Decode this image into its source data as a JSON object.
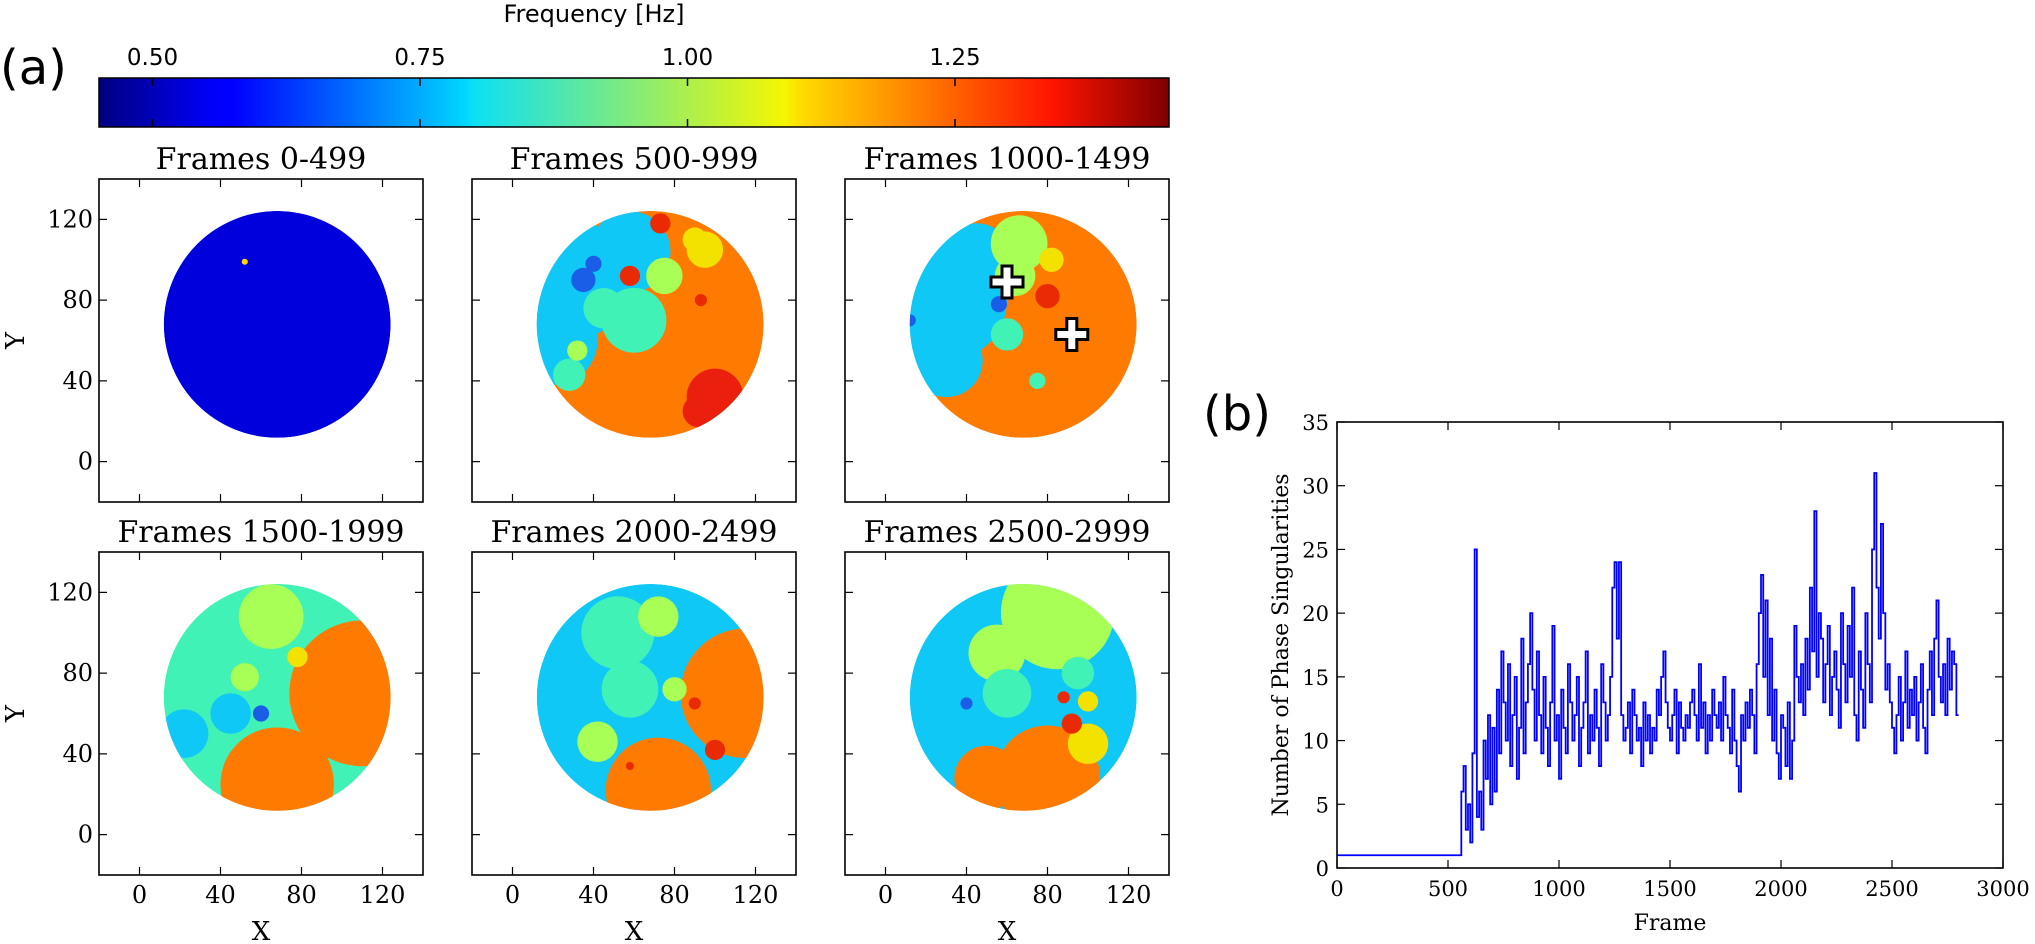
{
  "panel_labels": {
    "a": "(a)",
    "b": "(b)"
  },
  "colorbar": {
    "label": "Frequency [Hz]",
    "ticks": [
      "0.50",
      "0.75",
      "1.00",
      "1.25"
    ],
    "tick_values": [
      0.5,
      0.75,
      1.0,
      1.25
    ],
    "range": [
      0.45,
      1.45
    ],
    "colormap": "jet"
  },
  "map_axes": {
    "xlabel": "X",
    "ylabel": "Y",
    "x_ticks": [
      "0",
      "40",
      "80",
      "120"
    ],
    "y_ticks": [
      "0",
      "40",
      "80",
      "120"
    ],
    "xlim": [
      -20,
      140
    ],
    "ylim": [
      -20,
      140
    ]
  },
  "markers": [
    {
      "panel": 2,
      "x": 60,
      "y": 89,
      "label": "phase-singularity-marker"
    },
    {
      "panel": 2,
      "x": 92,
      "y": 63,
      "label": "phase-singularity-marker"
    }
  ],
  "chart_data": [
    {
      "type": "heatmap",
      "title": "Frames 0-499",
      "xlabel": "X",
      "ylabel": "Y",
      "xlim": [
        -20,
        140
      ],
      "ylim": [
        -20,
        140
      ],
      "circle": {
        "cx": 68,
        "cy": 68,
        "r": 56
      },
      "base_color": "#0000dd",
      "regions": [
        {
          "cx": 52,
          "cy": 99,
          "r": 1.5,
          "color": "#ffd800"
        }
      ]
    },
    {
      "type": "heatmap",
      "title": "Frames 500-999",
      "xlabel": "X",
      "ylabel": "Y",
      "xlim": [
        -20,
        140
      ],
      "ylim": [
        -20,
        140
      ],
      "circle": {
        "cx": 68,
        "cy": 68,
        "r": 56
      },
      "base_color": "#ff7a00",
      "regions": [
        {
          "cx": 28,
          "cy": 90,
          "r": 30,
          "color": "#10c8f6"
        },
        {
          "cx": 20,
          "cy": 60,
          "r": 22,
          "color": "#10c8f6"
        },
        {
          "cx": 58,
          "cy": 104,
          "r": 20,
          "color": "#10c8f6"
        },
        {
          "cx": 60,
          "cy": 70,
          "r": 16,
          "color": "#40f2b6"
        },
        {
          "cx": 45,
          "cy": 76,
          "r": 10,
          "color": "#40f2b6"
        },
        {
          "cx": 28,
          "cy": 43,
          "r": 8,
          "color": "#40f2b6"
        },
        {
          "cx": 75,
          "cy": 92,
          "r": 9,
          "color": "#a8ff55"
        },
        {
          "cx": 95,
          "cy": 105,
          "r": 9,
          "color": "#f3e200"
        },
        {
          "cx": 90,
          "cy": 110,
          "r": 6,
          "color": "#f3e200"
        },
        {
          "cx": 73,
          "cy": 118,
          "r": 5,
          "color": "#ea2a05"
        },
        {
          "cx": 35,
          "cy": 90,
          "r": 6,
          "color": "#1a5ee8"
        },
        {
          "cx": 40,
          "cy": 98,
          "r": 4,
          "color": "#1a5ee8"
        },
        {
          "cx": 58,
          "cy": 92,
          "r": 5,
          "color": "#ea2a05"
        },
        {
          "cx": 100,
          "cy": 32,
          "r": 14,
          "color": "#ea1f0d"
        },
        {
          "cx": 92,
          "cy": 25,
          "r": 8,
          "color": "#ea1f0d"
        },
        {
          "cx": 93,
          "cy": 80,
          "r": 3,
          "color": "#ea2a05"
        },
        {
          "cx": 32,
          "cy": 55,
          "r": 5,
          "color": "#a8ff55"
        }
      ]
    },
    {
      "type": "heatmap",
      "title": "Frames 1000-1499",
      "xlabel": "X",
      "ylabel": "Y",
      "xlim": [
        -20,
        140
      ],
      "ylim": [
        -20,
        140
      ],
      "circle": {
        "cx": 68,
        "cy": 68,
        "r": 56
      },
      "base_color": "#ff7a00",
      "regions": [
        {
          "cx": 30,
          "cy": 80,
          "r": 30,
          "color": "#10c8f6"
        },
        {
          "cx": 45,
          "cy": 100,
          "r": 18,
          "color": "#10c8f6"
        },
        {
          "cx": 30,
          "cy": 50,
          "r": 18,
          "color": "#10c8f6"
        },
        {
          "cx": 66,
          "cy": 108,
          "r": 14,
          "color": "#a8ff55"
        },
        {
          "cx": 64,
          "cy": 92,
          "r": 10,
          "color": "#a8ff55"
        },
        {
          "cx": 82,
          "cy": 100,
          "r": 6,
          "color": "#f3e200"
        },
        {
          "cx": 80,
          "cy": 82,
          "r": 6,
          "color": "#ea2a05"
        },
        {
          "cx": 12,
          "cy": 70,
          "r": 3,
          "color": "#1a5ee8"
        },
        {
          "cx": 56,
          "cy": 78,
          "r": 4,
          "color": "#1a5ee8"
        },
        {
          "cx": 60,
          "cy": 63,
          "r": 8,
          "color": "#40f2b6"
        },
        {
          "cx": 75,
          "cy": 40,
          "r": 4,
          "color": "#40f2b6"
        }
      ]
    },
    {
      "type": "heatmap",
      "title": "Frames 1500-1999",
      "xlabel": "X",
      "ylabel": "Y",
      "xlim": [
        -20,
        140
      ],
      "ylim": [
        -20,
        140
      ],
      "circle": {
        "cx": 68,
        "cy": 68,
        "r": 56
      },
      "base_color": "#40f2b6",
      "regions": [
        {
          "cx": 110,
          "cy": 70,
          "r": 36,
          "color": "#ff7a00"
        },
        {
          "cx": 68,
          "cy": 25,
          "r": 28,
          "color": "#ff7a00"
        },
        {
          "cx": 65,
          "cy": 108,
          "r": 16,
          "color": "#a8ff55"
        },
        {
          "cx": 22,
          "cy": 50,
          "r": 12,
          "color": "#10c8f6"
        },
        {
          "cx": 45,
          "cy": 60,
          "r": 10,
          "color": "#10c8f6"
        },
        {
          "cx": 60,
          "cy": 60,
          "r": 4,
          "color": "#1a5ee8"
        },
        {
          "cx": 78,
          "cy": 88,
          "r": 5,
          "color": "#f3e200"
        },
        {
          "cx": 52,
          "cy": 78,
          "r": 7,
          "color": "#a8ff55"
        }
      ]
    },
    {
      "type": "heatmap",
      "title": "Frames 2000-2499",
      "xlabel": "X",
      "ylabel": "Y",
      "xlim": [
        -20,
        140
      ],
      "ylim": [
        -20,
        140
      ],
      "circle": {
        "cx": 68,
        "cy": 68,
        "r": 56
      },
      "base_color": "#10c8f6",
      "regions": [
        {
          "cx": 115,
          "cy": 70,
          "r": 32,
          "color": "#ff7a00"
        },
        {
          "cx": 72,
          "cy": 22,
          "r": 26,
          "color": "#ff7a00"
        },
        {
          "cx": 52,
          "cy": 100,
          "r": 18,
          "color": "#40f2b6"
        },
        {
          "cx": 58,
          "cy": 72,
          "r": 14,
          "color": "#40f2b6"
        },
        {
          "cx": 42,
          "cy": 46,
          "r": 10,
          "color": "#a8ff55"
        },
        {
          "cx": 72,
          "cy": 108,
          "r": 10,
          "color": "#a8ff55"
        },
        {
          "cx": 80,
          "cy": 72,
          "r": 6,
          "color": "#a8ff55"
        },
        {
          "cx": 100,
          "cy": 42,
          "r": 5,
          "color": "#ea2a05"
        },
        {
          "cx": 90,
          "cy": 65,
          "r": 3,
          "color": "#ea2a05"
        },
        {
          "cx": 58,
          "cy": 34,
          "r": 2,
          "color": "#ea2a05"
        }
      ]
    },
    {
      "type": "heatmap",
      "title": "Frames 2500-2999",
      "xlabel": "X",
      "ylabel": "Y",
      "xlim": [
        -20,
        140
      ],
      "ylim": [
        -20,
        140
      ],
      "circle": {
        "cx": 68,
        "cy": 68,
        "r": 56
      },
      "base_color": "#10c8f6",
      "regions": [
        {
          "cx": 85,
          "cy": 110,
          "r": 28,
          "color": "#a8ff55"
        },
        {
          "cx": 55,
          "cy": 90,
          "r": 14,
          "color": "#a8ff55"
        },
        {
          "cx": 95,
          "cy": 80,
          "r": 8,
          "color": "#40f2b6"
        },
        {
          "cx": 60,
          "cy": 70,
          "r": 12,
          "color": "#40f2b6"
        },
        {
          "cx": 80,
          "cy": 28,
          "r": 26,
          "color": "#ff7a00"
        },
        {
          "cx": 50,
          "cy": 28,
          "r": 16,
          "color": "#ff7a00"
        },
        {
          "cx": 100,
          "cy": 45,
          "r": 10,
          "color": "#f3e200"
        },
        {
          "cx": 92,
          "cy": 55,
          "r": 5,
          "color": "#ea2a05"
        },
        {
          "cx": 100,
          "cy": 66,
          "r": 5,
          "color": "#f3e200"
        },
        {
          "cx": 88,
          "cy": 68,
          "r": 3,
          "color": "#ea2a05"
        },
        {
          "cx": 40,
          "cy": 65,
          "r": 3,
          "color": "#1a5ee8"
        }
      ]
    },
    {
      "type": "line",
      "title": "",
      "xlabel": "Frame",
      "ylabel": "Number of Phase Singularities",
      "xlim": [
        0,
        3000
      ],
      "ylim": [
        0,
        35
      ],
      "x_ticks": [
        "0",
        "500",
        "1000",
        "1500",
        "2000",
        "2500",
        "3000"
      ],
      "y_ticks": [
        "0",
        "5",
        "10",
        "15",
        "20",
        "25",
        "30",
        "35"
      ],
      "grid": false,
      "color": "#0000ff",
      "step": 10,
      "series": [
        {
          "name": "Number of Phase Singularities",
          "x_start": 0,
          "x_step": 10,
          "values": [
            1,
            1,
            1,
            1,
            1,
            1,
            1,
            1,
            1,
            1,
            1,
            1,
            1,
            1,
            1,
            1,
            1,
            1,
            1,
            1,
            1,
            1,
            1,
            1,
            1,
            1,
            1,
            1,
            1,
            1,
            1,
            1,
            1,
            1,
            1,
            1,
            1,
            1,
            1,
            1,
            1,
            1,
            1,
            1,
            1,
            1,
            1,
            1,
            1,
            1,
            1,
            1,
            1,
            1,
            1,
            1,
            6,
            8,
            3,
            5,
            2,
            9,
            25,
            4,
            6,
            3,
            10,
            7,
            12,
            5,
            11,
            6,
            14,
            9,
            17,
            13,
            10,
            16,
            8,
            12,
            15,
            7,
            11,
            18,
            9,
            13,
            16,
            20,
            14,
            10,
            17,
            12,
            9,
            15,
            11,
            8,
            13,
            19,
            10,
            12,
            7,
            14,
            11,
            9,
            16,
            13,
            10,
            12,
            15,
            8,
            11,
            13,
            17,
            9,
            12,
            10,
            14,
            11,
            8,
            16,
            13,
            10,
            12,
            15,
            22,
            24,
            18,
            24,
            12,
            10,
            11,
            13,
            9,
            14,
            12,
            10,
            11,
            8,
            13,
            10,
            12,
            9,
            11,
            10,
            14,
            12,
            15,
            17,
            13,
            11,
            10,
            12,
            14,
            9,
            13,
            11,
            10,
            12,
            11,
            13,
            14,
            12,
            10,
            16,
            11,
            13,
            9,
            12,
            10,
            14,
            12,
            11,
            13,
            10,
            15,
            12,
            11,
            9,
            14,
            10,
            8,
            6,
            12,
            10,
            13,
            11,
            14,
            12,
            9,
            16,
            20,
            23,
            15,
            21,
            12,
            18,
            10,
            14,
            9,
            7,
            12,
            11,
            8,
            13,
            7,
            10,
            19,
            15,
            13,
            16,
            12,
            18,
            14,
            22,
            17,
            28,
            15,
            20,
            18,
            13,
            16,
            19,
            12,
            15,
            17,
            14,
            11,
            20,
            16,
            13,
            19,
            15,
            22,
            12,
            10,
            17,
            14,
            11,
            20,
            16,
            13,
            25,
            31,
            22,
            18,
            27,
            20,
            14,
            16,
            13,
            11,
            9,
            12,
            15,
            10,
            13,
            17,
            11,
            14,
            12,
            15,
            10,
            13,
            16,
            11,
            9,
            14,
            17,
            12,
            18,
            21,
            15,
            13,
            16,
            12,
            18,
            14,
            17,
            16,
            12
          ]
        }
      ]
    }
  ]
}
